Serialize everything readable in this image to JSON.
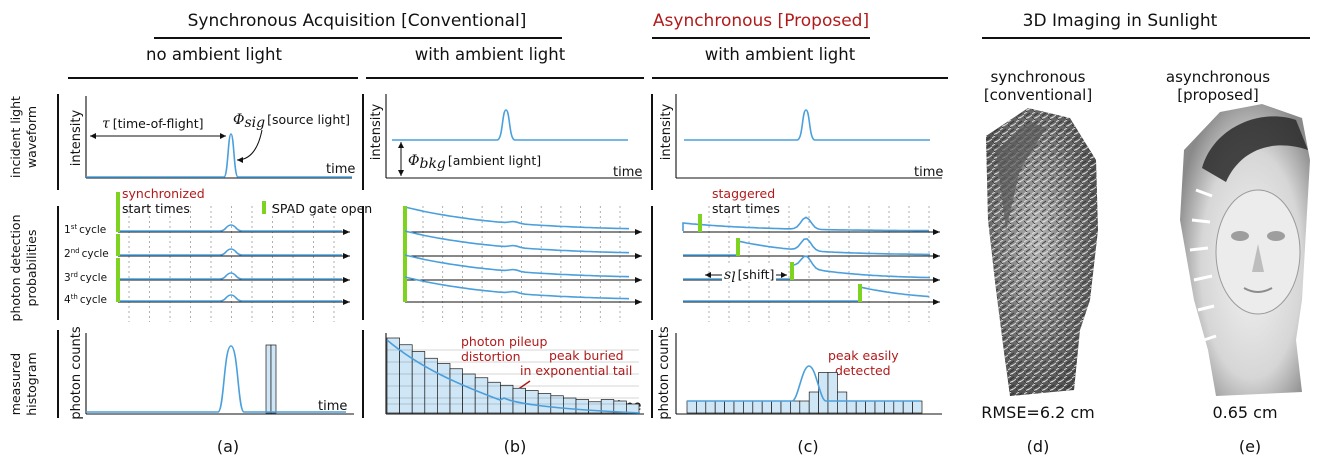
{
  "headers": {
    "sync": "Synchronous Acquisition [Conventional]",
    "async": "Asynchronous [Proposed]",
    "imaging": "3D Imaging in Sunlight",
    "no_ambient": "no ambient light",
    "with_ambient_b": "with ambient light",
    "with_ambient_c": "with ambient light"
  },
  "row_labels": {
    "waveform": [
      "incident light",
      "waveform"
    ],
    "detection": [
      "photon detection",
      "probabilities"
    ],
    "histogram": [
      "measured",
      "histogram"
    ]
  },
  "axis_text": {
    "intensity": "intensity",
    "time": "time",
    "photon_counts": "photon counts"
  },
  "annotations": {
    "tof_symbol": "τ",
    "tof_label": "[time-of-flight]",
    "sig_symbol": "Φ",
    "sig_sub": "sig",
    "sig_label": "[source light]",
    "bkg_symbol": "Φ",
    "bkg_sub": "bkg",
    "bkg_label": "[ambient light]",
    "synchronized_1": "synchronized",
    "synchronized_2": "start times",
    "gate_open": "SPAD gate open",
    "staggered_1": "staggered",
    "staggered_2": "start times",
    "shift_symbol": "s",
    "shift_sub": "l",
    "shift_label": "[shift]",
    "pileup_1": "photon pileup",
    "pileup_2": "distortion",
    "buried_1": "peak buried",
    "buried_2": "in exponential tail",
    "easily_1": "peak easily",
    "easily_2": "detected"
  },
  "cycles": [
    {
      "num": "1",
      "sup": "st",
      "word": "cycle"
    },
    {
      "num": "2",
      "sup": "nd",
      "word": "cycle"
    },
    {
      "num": "3",
      "sup": "rd",
      "word": "cycle"
    },
    {
      "num": "4",
      "sup": "th",
      "word": "cycle"
    }
  ],
  "imaging": {
    "sync_label_1": "synchronous",
    "sync_label_2": "[conventional]",
    "async_label_1": "asynchronous",
    "async_label_2": "[proposed]",
    "rmse_sync": "RMSE=6.2 cm",
    "rmse_async": "0.65 cm"
  },
  "captions": [
    "(a)",
    "(b)",
    "(c)",
    "(d)",
    "(e)"
  ],
  "colors": {
    "curve": "#4a9fdc",
    "gate": "#7ed321",
    "accent_red": "#b11a1a",
    "bar_fill": "#cfe6f6"
  },
  "histograms": {
    "a_counts": [
      0,
      0,
      0,
      0,
      0,
      0,
      0,
      0,
      0,
      0,
      0,
      0,
      0,
      0,
      0,
      0,
      0,
      0,
      0,
      0,
      0,
      0,
      0,
      0,
      0,
      0,
      0,
      0,
      0,
      0,
      0,
      0,
      0,
      0,
      0,
      0,
      100,
      100,
      0,
      0,
      0,
      0,
      0,
      0,
      0,
      0,
      0,
      0,
      0,
      0
    ],
    "b_counts": [
      100,
      91,
      82,
      73,
      66,
      59,
      52,
      47,
      41,
      37,
      33,
      30,
      26,
      23,
      20,
      18,
      15,
      18,
      16,
      12
    ],
    "c_counts": [
      16,
      16,
      16,
      16,
      16,
      16,
      16,
      16,
      16,
      16,
      16,
      16,
      16,
      28,
      54,
      54,
      28,
      16,
      16,
      16,
      16,
      16,
      16,
      16,
      16
    ]
  }
}
